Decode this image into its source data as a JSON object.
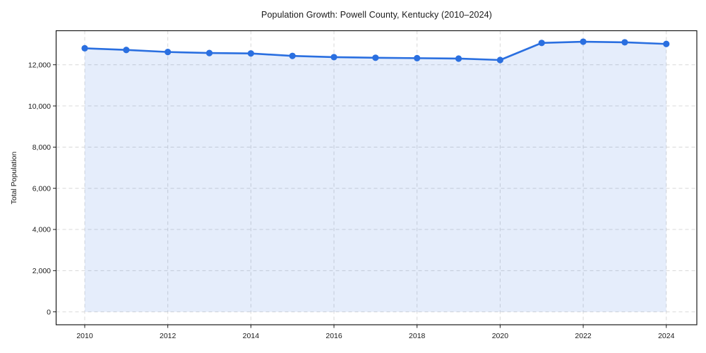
{
  "chart_data": {
    "type": "area",
    "title": "Population Growth: Powell County, Kentucky (2010–2024)",
    "xlabel": "",
    "ylabel": "Total Population",
    "series_name": "Total Population",
    "x": [
      2010,
      2011,
      2012,
      2013,
      2014,
      2015,
      2016,
      2017,
      2018,
      2019,
      2020,
      2021,
      2022,
      2023,
      2024
    ],
    "values": [
      12800,
      12720,
      12620,
      12570,
      12550,
      12430,
      12370,
      12340,
      12320,
      12300,
      12230,
      13060,
      13120,
      13090,
      13010
    ],
    "x_ticks": [
      2010,
      2012,
      2014,
      2016,
      2018,
      2020,
      2022,
      2024
    ],
    "x_tick_labels": [
      "2010",
      "2012",
      "2014",
      "2016",
      "2018",
      "2020",
      "2022",
      "2024"
    ],
    "y_ticks": [
      0,
      2000,
      4000,
      6000,
      8000,
      10000,
      12000
    ],
    "y_tick_labels": [
      "0",
      "2,000",
      "4,000",
      "6,000",
      "8,000",
      "10,000",
      "12,000"
    ],
    "xlim": [
      2009.3,
      2024.7
    ],
    "ylim": [
      -630,
      13660
    ],
    "grid": true,
    "grid_style": "dashed",
    "legend_position": "none",
    "marker": "circle",
    "fill_to_zero": true,
    "colors": {
      "line": "#2a6fe0",
      "marker": "#2a6fe0",
      "fill": "rgba(42,111,224,0.12)",
      "grid": "#d8d8d8",
      "spine": "#1a1a1a",
      "text": "#1a1a1a",
      "background": "#ffffff"
    }
  }
}
